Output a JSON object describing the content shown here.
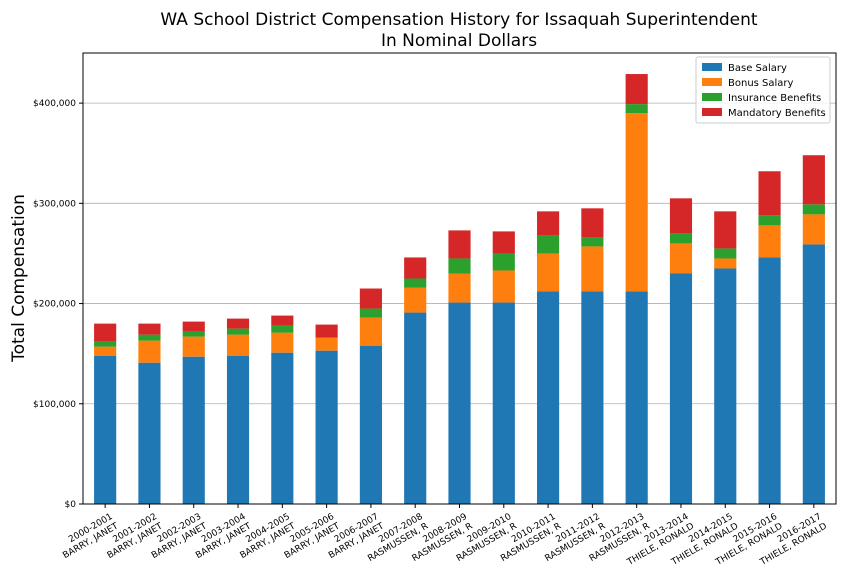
{
  "chart_data": {
    "type": "bar",
    "stacked": true,
    "title": "WA School District Compensation History for Issaquah Superintendent",
    "subtitle": "In Nominal Dollars",
    "xlabel": "",
    "ylabel": "Total Compensation",
    "ylim": [
      0,
      450000
    ],
    "y_ticks": [
      0,
      100000,
      200000,
      300000,
      400000
    ],
    "y_tick_labels": [
      "$0",
      "$100,000",
      "$200,000",
      "$300,000",
      "$400,000"
    ],
    "grid": "horizontal",
    "legend_position": "top-right",
    "categories": [
      [
        "2000-2001",
        "BARRY, JANET"
      ],
      [
        "2001-2002",
        "BARRY, JANET"
      ],
      [
        "2002-2003",
        "BARRY, JANET"
      ],
      [
        "2003-2004",
        "BARRY, JANET"
      ],
      [
        "2004-2005",
        "BARRY, JANET"
      ],
      [
        "2005-2006",
        "BARRY, JANET"
      ],
      [
        "2006-2007",
        "BARRY, JANET"
      ],
      [
        "2007-2008",
        "RASMUSSEN, R"
      ],
      [
        "2008-2009",
        "RASMUSSEN, R"
      ],
      [
        "2009-2010",
        "RASMUSSEN, R"
      ],
      [
        "2010-2011",
        "RASMUSSEN, R"
      ],
      [
        "2011-2012",
        "RASMUSSEN, R"
      ],
      [
        "2012-2013",
        "RASMUSSEN, R"
      ],
      [
        "2013-2014",
        "THIELE, RONALD"
      ],
      [
        "2014-2015",
        "THIELE, RONALD"
      ],
      [
        "2015-2016",
        "THIELE, RONALD"
      ],
      [
        "2016-2017",
        "THIELE, RONALD"
      ]
    ],
    "series": [
      {
        "name": "Base Salary",
        "color": "#1f77b4",
        "values": [
          148000,
          141000,
          147000,
          148000,
          151000,
          153000,
          158000,
          191000,
          201000,
          201000,
          212000,
          212000,
          212000,
          230000,
          235000,
          246000,
          259000
        ]
      },
      {
        "name": "Bonus Salary",
        "color": "#ff7f0e",
        "values": [
          9000,
          22000,
          20000,
          21000,
          20000,
          13000,
          28000,
          25000,
          29000,
          32000,
          38000,
          45000,
          178000,
          30000,
          10000,
          32000,
          30000
        ]
      },
      {
        "name": "Insurance Benefits",
        "color": "#2ca02c",
        "values": [
          5000,
          6000,
          5000,
          6000,
          7000,
          0,
          9000,
          9000,
          15000,
          17000,
          18000,
          9000,
          9000,
          10000,
          10000,
          10000,
          10000
        ]
      },
      {
        "name": "Mandatory Benefits",
        "color": "#d62728",
        "values": [
          18000,
          11000,
          10000,
          10000,
          10000,
          13000,
          20000,
          21000,
          28000,
          22000,
          24000,
          29000,
          30000,
          35000,
          37000,
          44000,
          49000
        ]
      }
    ]
  }
}
